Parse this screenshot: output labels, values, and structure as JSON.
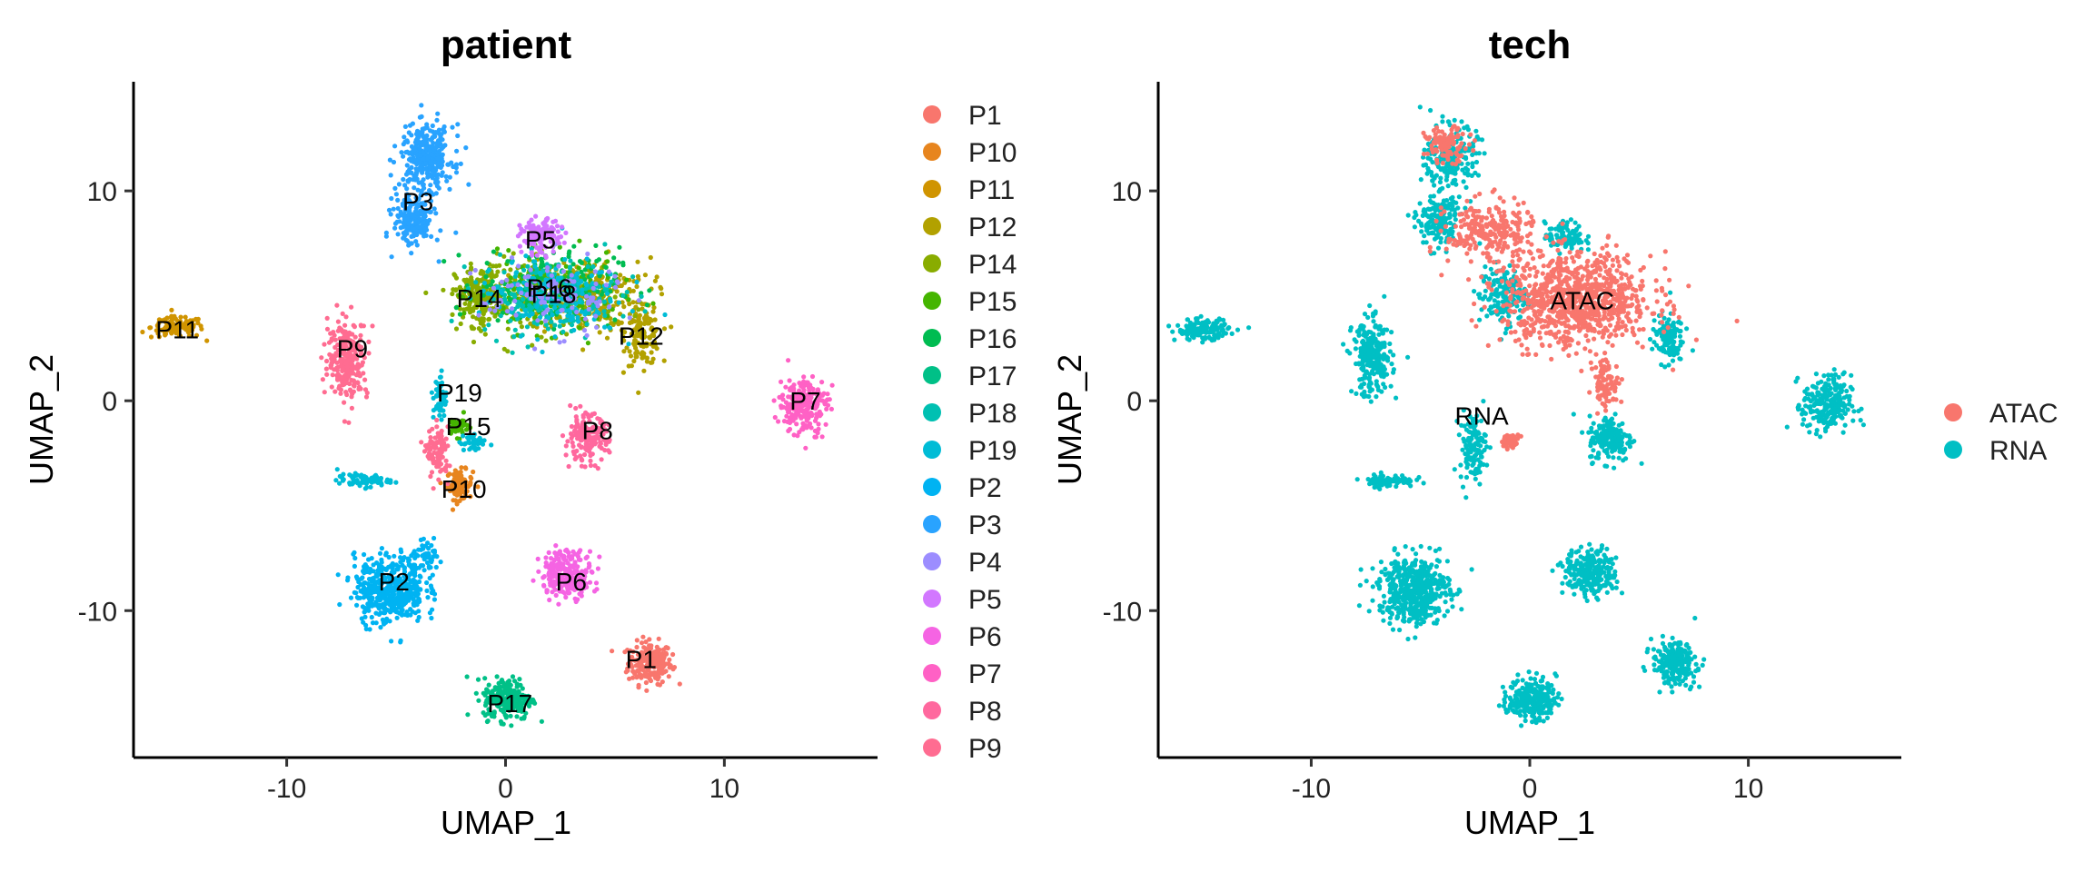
{
  "chart_data": [
    {
      "type": "scatter",
      "title": "patient",
      "xlabel": "UMAP_1",
      "ylabel": "UMAP_2",
      "xlim": [
        -17,
        17
      ],
      "ylim": [
        -17,
        15.2
      ],
      "xticks": [
        -10,
        0,
        10
      ],
      "yticks": [
        -10,
        0,
        10
      ],
      "grid": false,
      "legend_position": "right",
      "series": [
        {
          "name": "P1",
          "color": "#F8766D",
          "clusters": [
            {
              "cx": 6.6,
              "cy": -12.5,
              "rx": 1.0,
              "ry": 1.0,
              "n": 220
            }
          ]
        },
        {
          "name": "P10",
          "color": "#E7851E",
          "clusters": [
            {
              "cx": -2.1,
              "cy": -4.0,
              "rx": 0.6,
              "ry": 0.7,
              "n": 90
            }
          ]
        },
        {
          "name": "P11",
          "color": "#D09400",
          "clusters": [
            {
              "cx": -15.0,
              "cy": 3.5,
              "rx": 1.2,
              "ry": 0.5,
              "n": 120
            }
          ]
        },
        {
          "name": "P12",
          "color": "#B2A100",
          "clusters": [
            {
              "cx": 6.3,
              "cy": 3.0,
              "rx": 0.8,
              "ry": 1.3,
              "n": 120
            },
            {
              "cx": 3.8,
              "cy": 5.0,
              "rx": 2.8,
              "ry": 1.8,
              "n": 260
            }
          ]
        },
        {
          "name": "P14",
          "color": "#89AC00",
          "clusters": [
            {
              "cx": -1.2,
              "cy": 5.0,
              "rx": 1.1,
              "ry": 1.4,
              "n": 200
            },
            {
              "cx": 2.0,
              "cy": 5.0,
              "rx": 3.0,
              "ry": 1.8,
              "n": 200
            }
          ]
        },
        {
          "name": "P15",
          "color": "#45B500",
          "clusters": [
            {
              "cx": -2.2,
              "cy": -1.2,
              "rx": 0.5,
              "ry": 0.5,
              "n": 40
            },
            {
              "cx": 2.0,
              "cy": 5.0,
              "rx": 3.2,
              "ry": 1.8,
              "n": 150
            }
          ]
        },
        {
          "name": "P16",
          "color": "#00BC51",
          "clusters": [
            {
              "cx": 2.0,
              "cy": 5.5,
              "rx": 3.2,
              "ry": 1.8,
              "n": 180
            }
          ]
        },
        {
          "name": "P17",
          "color": "#00C087",
          "clusters": [
            {
              "cx": 0.1,
              "cy": -14.2,
              "rx": 1.1,
              "ry": 1.0,
              "n": 240
            }
          ]
        },
        {
          "name": "P18",
          "color": "#00C0B2",
          "clusters": [
            {
              "cx": 2.0,
              "cy": 5.0,
              "rx": 3.2,
              "ry": 1.8,
              "n": 200
            }
          ]
        },
        {
          "name": "P19",
          "color": "#00BCD6",
          "clusters": [
            {
              "cx": -3.0,
              "cy": 0.2,
              "rx": 0.3,
              "ry": 1.2,
              "n": 50
            },
            {
              "cx": -6.5,
              "cy": -3.8,
              "rx": 1.2,
              "ry": 0.3,
              "n": 70
            },
            {
              "cx": -1.5,
              "cy": -2.0,
              "rx": 0.6,
              "ry": 0.5,
              "n": 40
            },
            {
              "cx": 2.0,
              "cy": 5.0,
              "rx": 3.2,
              "ry": 1.8,
              "n": 150
            }
          ]
        },
        {
          "name": "P2",
          "color": "#00B3F2",
          "clusters": [
            {
              "cx": -5.3,
              "cy": -9.0,
              "rx": 1.6,
              "ry": 1.6,
              "n": 450
            },
            {
              "cx": -3.6,
              "cy": -7.5,
              "rx": 0.8,
              "ry": 0.7,
              "n": 60
            }
          ]
        },
        {
          "name": "P3",
          "color": "#29A3FF",
          "clusters": [
            {
              "cx": -3.6,
              "cy": 11.6,
              "rx": 1.2,
              "ry": 1.5,
              "n": 320
            },
            {
              "cx": -4.2,
              "cy": 8.6,
              "rx": 0.9,
              "ry": 1.3,
              "n": 200
            }
          ]
        },
        {
          "name": "P4",
          "color": "#9C8DFF",
          "clusters": [
            {
              "cx": 2.0,
              "cy": 5.0,
              "rx": 3.2,
              "ry": 1.8,
              "n": 120
            }
          ]
        },
        {
          "name": "P5",
          "color": "#D277FF",
          "clusters": [
            {
              "cx": 1.6,
              "cy": 7.8,
              "rx": 0.9,
              "ry": 0.8,
              "n": 130
            }
          ]
        },
        {
          "name": "P6",
          "color": "#F564E3",
          "clusters": [
            {
              "cx": 2.8,
              "cy": -8.2,
              "rx": 1.2,
              "ry": 1.1,
              "n": 240
            }
          ]
        },
        {
          "name": "P7",
          "color": "#FF61C5",
          "clusters": [
            {
              "cx": 13.6,
              "cy": -0.2,
              "rx": 1.1,
              "ry": 1.4,
              "n": 230
            }
          ]
        },
        {
          "name": "P8",
          "color": "#FF689E",
          "clusters": [
            {
              "cx": 3.7,
              "cy": -1.8,
              "rx": 1.0,
              "ry": 1.1,
              "n": 170
            }
          ]
        },
        {
          "name": "P9",
          "color": "#FF6C91",
          "clusters": [
            {
              "cx": -7.2,
              "cy": 2.0,
              "rx": 0.9,
              "ry": 1.8,
              "n": 260
            },
            {
              "cx": -3.1,
              "cy": -2.5,
              "rx": 0.5,
              "ry": 1.2,
              "n": 100
            }
          ]
        }
      ],
      "labels": [
        {
          "text": "P1",
          "x": 6.2,
          "y": -12.3
        },
        {
          "text": "P10",
          "x": -1.9,
          "y": -4.2
        },
        {
          "text": "P11",
          "x": -15.0,
          "y": 3.4
        },
        {
          "text": "P12",
          "x": 6.2,
          "y": 3.1
        },
        {
          "text": "P14",
          "x": -1.2,
          "y": 4.9
        },
        {
          "text": "P15",
          "x": -1.7,
          "y": -1.2
        },
        {
          "text": "P16",
          "x": 2.0,
          "y": 5.4
        },
        {
          "text": "P17",
          "x": 0.2,
          "y": -14.4
        },
        {
          "text": "P18",
          "x": 2.2,
          "y": 5.1
        },
        {
          "text": "P19",
          "x": -2.1,
          "y": 0.4
        },
        {
          "text": "P2",
          "x": -5.1,
          "y": -8.6
        },
        {
          "text": "P3",
          "x": -4.0,
          "y": 9.5
        },
        {
          "text": "P5",
          "x": 1.6,
          "y": 7.7
        },
        {
          "text": "P6",
          "x": 3.0,
          "y": -8.6
        },
        {
          "text": "P7",
          "x": 13.7,
          "y": 0.0
        },
        {
          "text": "P8",
          "x": 4.2,
          "y": -1.4
        },
        {
          "text": "P9",
          "x": -7.0,
          "y": 2.5
        }
      ]
    },
    {
      "type": "scatter",
      "title": "tech",
      "xlabel": "UMAP_1",
      "ylabel": "UMAP_2",
      "xlim": [
        -17,
        17
      ],
      "ylim": [
        -17,
        15.2
      ],
      "xticks": [
        -10,
        0,
        10
      ],
      "yticks": [
        -10,
        0,
        10
      ],
      "grid": false,
      "legend_position": "right",
      "series": [
        {
          "name": "RNA",
          "color": "#00BFC4",
          "clusters": [
            {
              "cx": -15.0,
              "cy": 3.4,
              "rx": 1.2,
              "ry": 0.5,
              "n": 150
            },
            {
              "cx": -7.2,
              "cy": 2.0,
              "rx": 0.9,
              "ry": 1.8,
              "n": 260
            },
            {
              "cx": -5.3,
              "cy": -9.0,
              "rx": 1.6,
              "ry": 1.6,
              "n": 500
            },
            {
              "cx": -3.6,
              "cy": 11.6,
              "rx": 1.2,
              "ry": 1.5,
              "n": 200
            },
            {
              "cx": -4.2,
              "cy": 8.6,
              "rx": 0.9,
              "ry": 1.3,
              "n": 180
            },
            {
              "cx": 6.6,
              "cy": -12.5,
              "rx": 1.0,
              "ry": 1.0,
              "n": 230
            },
            {
              "cx": 0.1,
              "cy": -14.2,
              "rx": 1.1,
              "ry": 1.0,
              "n": 250
            },
            {
              "cx": 2.8,
              "cy": -8.2,
              "rx": 1.2,
              "ry": 1.1,
              "n": 250
            },
            {
              "cx": 13.6,
              "cy": -0.2,
              "rx": 1.1,
              "ry": 1.4,
              "n": 250
            },
            {
              "cx": 3.7,
              "cy": -1.8,
              "rx": 1.0,
              "ry": 1.1,
              "n": 180
            },
            {
              "cx": -6.5,
              "cy": -3.8,
              "rx": 1.2,
              "ry": 0.3,
              "n": 80
            },
            {
              "cx": -2.6,
              "cy": -2.2,
              "rx": 0.6,
              "ry": 1.6,
              "n": 120
            },
            {
              "cx": -1.2,
              "cy": 5.0,
              "rx": 1.1,
              "ry": 1.4,
              "n": 160
            },
            {
              "cx": 6.3,
              "cy": 3.0,
              "rx": 0.7,
              "ry": 1.2,
              "n": 120
            },
            {
              "cx": 1.6,
              "cy": 7.8,
              "rx": 0.9,
              "ry": 0.7,
              "n": 100
            }
          ]
        },
        {
          "name": "ATAC",
          "color": "#F8766D",
          "clusters": [
            {
              "cx": 2.2,
              "cy": 4.8,
              "rx": 3.4,
              "ry": 2.2,
              "n": 900
            },
            {
              "cx": -1.8,
              "cy": 8.0,
              "rx": 2.0,
              "ry": 1.5,
              "n": 250
            },
            {
              "cx": -3.8,
              "cy": 12.2,
              "rx": 1.0,
              "ry": 0.8,
              "n": 100
            },
            {
              "cx": 3.5,
              "cy": 0.8,
              "rx": 0.6,
              "ry": 1.2,
              "n": 80
            },
            {
              "cx": -0.9,
              "cy": -1.9,
              "rx": 0.4,
              "ry": 0.3,
              "n": 40
            }
          ]
        }
      ],
      "labels": [
        {
          "text": "ATAC",
          "x": 2.4,
          "y": 4.8
        },
        {
          "text": "RNA",
          "x": -2.2,
          "y": -0.7
        }
      ]
    }
  ]
}
